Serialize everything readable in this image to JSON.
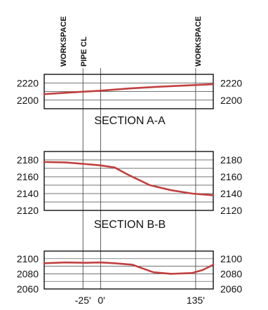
{
  "chart_data": [
    {
      "type": "line",
      "title": "SECTION A-A",
      "ylim": [
        2190,
        2230
      ],
      "yticks": [
        2200,
        2220
      ],
      "grid": true,
      "series": [
        {
          "x": [
            -80,
            -40,
            0,
            40,
            80,
            120,
            160
          ],
          "values": [
            2207,
            2209,
            2211,
            2213.5,
            2215.5,
            2217,
            2218.5
          ]
        }
      ]
    },
    {
      "type": "line",
      "title": "SECTION B-B",
      "ylim": [
        2120,
        2190
      ],
      "yticks": [
        2120,
        2140,
        2160,
        2180
      ],
      "grid": true,
      "series": [
        {
          "x": [
            -80,
            -50,
            -20,
            0,
            20,
            40,
            70,
            100,
            130,
            160
          ],
          "values": [
            2177.5,
            2177,
            2175,
            2173.5,
            2171,
            2162,
            2150,
            2144,
            2140,
            2138
          ]
        }
      ]
    },
    {
      "type": "line",
      "title": "",
      "ylim": [
        2060,
        2110
      ],
      "yticks": [
        2060,
        2080,
        2100
      ],
      "grid": true,
      "series": [
        {
          "x": [
            -80,
            -50,
            -20,
            0,
            20,
            45,
            75,
            100,
            130,
            145,
            160
          ],
          "values": [
            2094,
            2095,
            2094.5,
            2095,
            2094,
            2092,
            2082,
            2080,
            2081,
            2085,
            2092
          ]
        }
      ]
    }
  ],
  "x_axis": {
    "range": [
      -80,
      160
    ],
    "tick_labels": [
      {
        "value": -25,
        "label": "-25'"
      },
      {
        "value": 0,
        "label": "0'"
      },
      {
        "value": 135,
        "label": "135'"
      }
    ]
  },
  "vertical_markers": [
    {
      "value": -25,
      "label": "WORKSPACE"
    },
    {
      "value": 0,
      "label": "PIPE CL"
    },
    {
      "value": 135,
      "label": "WORKSPACE"
    }
  ],
  "colors": {
    "profile": "#c0403f",
    "grid": "#444444",
    "frame": "#111111"
  }
}
